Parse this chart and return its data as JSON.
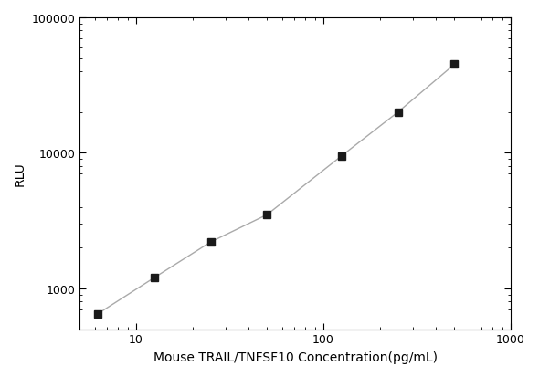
{
  "x_values": [
    6.25,
    12.5,
    25,
    50,
    125,
    250,
    500
  ],
  "y_values": [
    650,
    1200,
    2200,
    3500,
    9500,
    20000,
    45000
  ],
  "xlabel": "Mouse TRAIL/TNFSF10 Concentration(pg/mL)",
  "ylabel": "RLU",
  "xlim": [
    5,
    1000
  ],
  "ylim": [
    500,
    100000
  ],
  "line_color": "#aaaaaa",
  "marker_color": "#1a1a1a",
  "marker_size": 6,
  "line_width": 1.0,
  "background_color": "#ffffff",
  "xlabel_fontsize": 10,
  "ylabel_fontsize": 10,
  "tick_fontsize": 9
}
